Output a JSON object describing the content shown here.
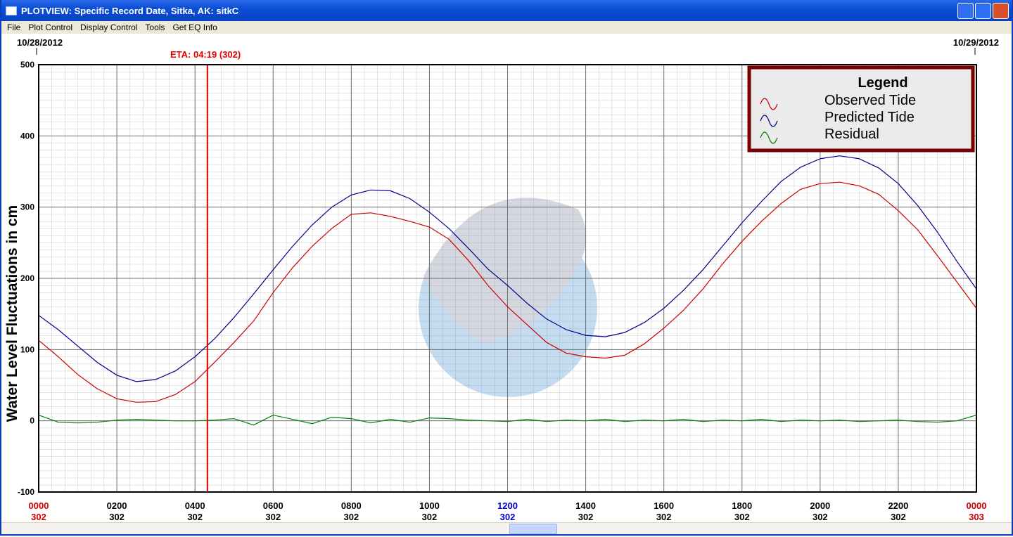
{
  "window": {
    "title": "PLOTVIEW: Specific Record Date, Sitka, AK: sitkC",
    "menu": [
      "File",
      "Plot Control",
      "Display Control",
      "Tools",
      "Get EQ Info"
    ]
  },
  "chart_data": {
    "type": "line",
    "ylabel": "Water Level Fluctuations in cm",
    "date_start": "10/28/2012",
    "date_end": "10/29/2012",
    "eta": {
      "label": "ETA: 04:19 (302)",
      "x": 4.3167,
      "color": "#e00000"
    },
    "legend": {
      "title": "Legend",
      "position": "upper right"
    },
    "grid": true,
    "xlim": [
      0,
      24
    ],
    "ylim": [
      -100,
      500
    ],
    "yticks": [
      -100,
      0,
      100,
      200,
      300,
      400,
      500
    ],
    "xticks": [
      {
        "value": 0,
        "label": "0000",
        "sublabel": "302",
        "color": "#cc0000"
      },
      {
        "value": 2,
        "label": "0200",
        "sublabel": "302",
        "color": "#000000"
      },
      {
        "value": 4,
        "label": "0400",
        "sublabel": "302",
        "color": "#000000"
      },
      {
        "value": 6,
        "label": "0600",
        "sublabel": "302",
        "color": "#000000"
      },
      {
        "value": 8,
        "label": "0800",
        "sublabel": "302",
        "color": "#000000"
      },
      {
        "value": 10,
        "label": "1000",
        "sublabel": "302",
        "color": "#000000"
      },
      {
        "value": 12,
        "label": "1200",
        "sublabel": "302",
        "color": "#0000cc"
      },
      {
        "value": 14,
        "label": "1400",
        "sublabel": "302",
        "color": "#000000"
      },
      {
        "value": 16,
        "label": "1600",
        "sublabel": "302",
        "color": "#000000"
      },
      {
        "value": 18,
        "label": "1800",
        "sublabel": "302",
        "color": "#000000"
      },
      {
        "value": 20,
        "label": "2000",
        "sublabel": "302",
        "color": "#000000"
      },
      {
        "value": 22,
        "label": "2200",
        "sublabel": "302",
        "color": "#000000"
      },
      {
        "value": 24,
        "label": "0000",
        "sublabel": "303",
        "color": "#cc0000"
      }
    ],
    "x": [
      0,
      0.5,
      1,
      1.5,
      2,
      2.5,
      3,
      3.5,
      4,
      4.5,
      5,
      5.5,
      6,
      6.5,
      7,
      7.5,
      8,
      8.5,
      9,
      9.5,
      10,
      10.5,
      11,
      11.5,
      12,
      12.5,
      13,
      13.5,
      14,
      14.5,
      15,
      15.5,
      16,
      16.5,
      17,
      17.5,
      18,
      18.5,
      19,
      19.5,
      20,
      20.5,
      21,
      21.5,
      22,
      22.5,
      23,
      23.5,
      24
    ],
    "series": [
      {
        "name": "Observed Tide",
        "color": "#cc0000",
        "values": [
          113,
          90,
          65,
          45,
          31,
          26,
          27,
          37,
          55,
          82,
          110,
          140,
          180,
          215,
          245,
          270,
          290,
          292,
          287,
          280,
          272,
          255,
          225,
          190,
          160,
          135,
          110,
          95,
          90,
          88,
          92,
          108,
          130,
          155,
          185,
          220,
          252,
          280,
          305,
          325,
          333,
          335,
          330,
          318,
          295,
          268,
          232,
          195,
          158
        ]
      },
      {
        "name": "Predicted Tide",
        "color": "#00008b",
        "values": [
          148,
          128,
          105,
          82,
          64,
          55,
          58,
          70,
          90,
          115,
          145,
          178,
          212,
          245,
          275,
          300,
          317,
          324,
          323,
          312,
          293,
          270,
          242,
          213,
          190,
          165,
          143,
          128,
          120,
          118,
          124,
          138,
          158,
          183,
          212,
          245,
          278,
          308,
          336,
          356,
          368,
          372,
          368,
          355,
          333,
          302,
          265,
          224,
          185
        ]
      },
      {
        "name": "Residual",
        "color": "#008000",
        "values": [
          8,
          -2,
          -3,
          -2,
          1,
          2,
          1,
          0,
          0,
          1,
          3,
          -6,
          8,
          2,
          -4,
          5,
          3,
          -3,
          2,
          -2,
          4,
          3,
          1,
          0,
          -1,
          2,
          -1,
          1,
          0,
          2,
          -1,
          1,
          0,
          2,
          -1,
          1,
          0,
          2,
          -1,
          1,
          0,
          1,
          -1,
          0,
          1,
          -1,
          -2,
          0,
          8
        ]
      }
    ]
  }
}
